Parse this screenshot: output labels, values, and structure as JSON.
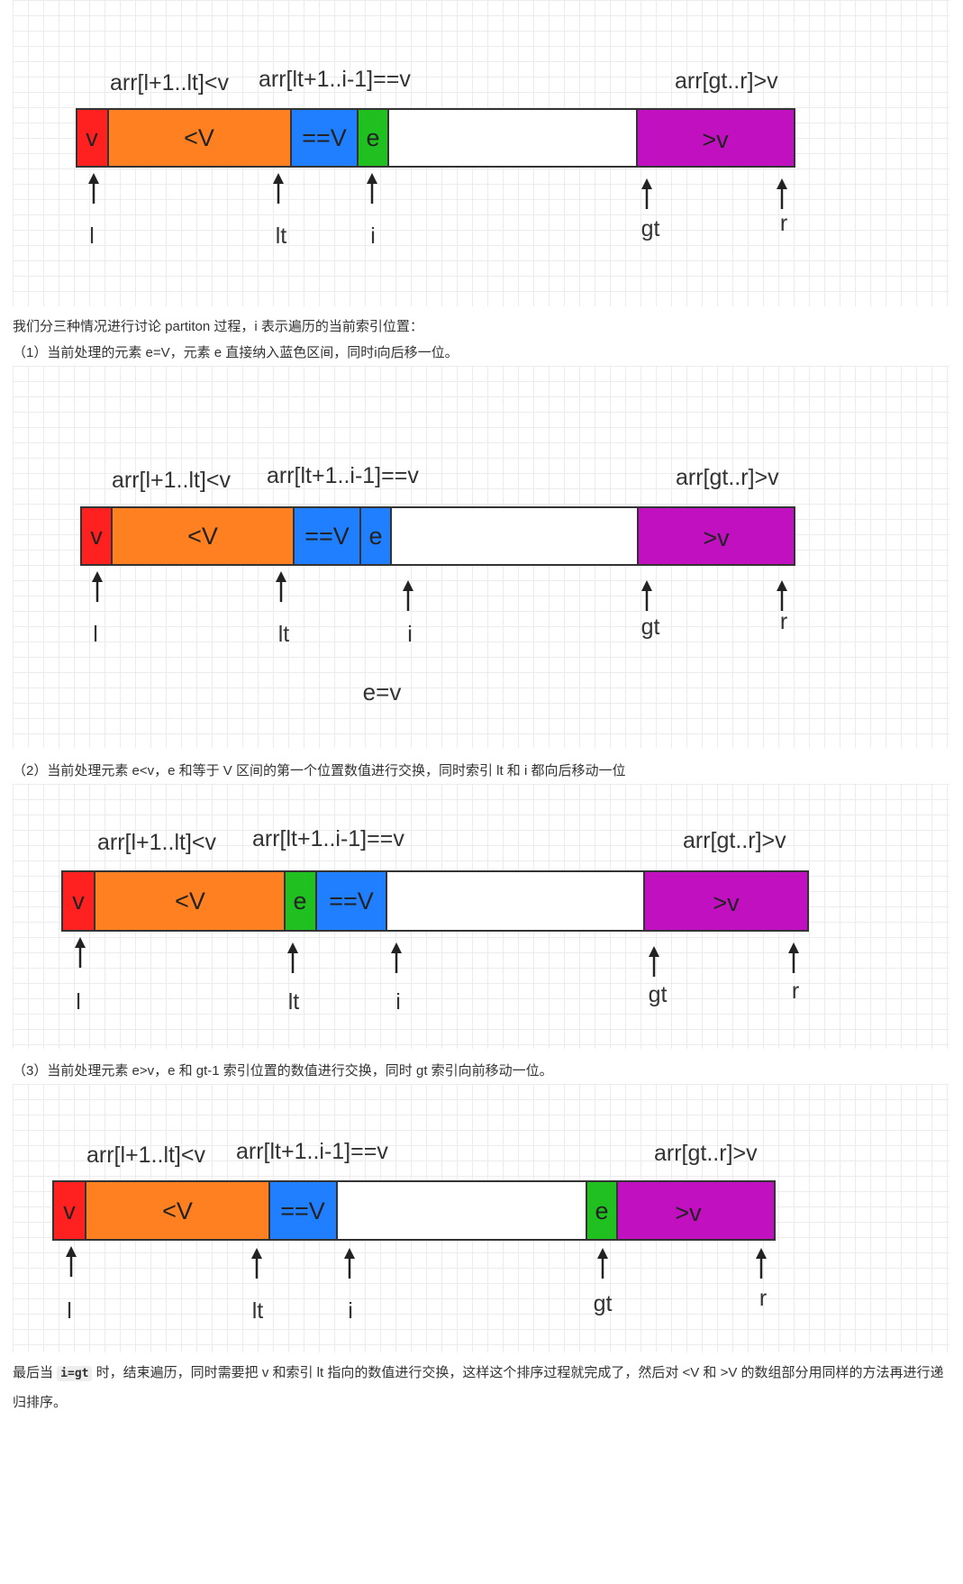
{
  "diagrams": [
    {
      "labels_top": {
        "left": "arr[l+1..lt]<v",
        "mid": "arr[lt+1..i-1]==v",
        "right": "arr[gt..r]>v"
      },
      "segments": [
        {
          "text": "v",
          "color": "#ff2020"
        },
        {
          "text": "<V",
          "color": "#ff8020"
        },
        {
          "text": "==V",
          "color": "#1f7fff"
        },
        {
          "text": "e",
          "color": "#20c020"
        },
        {
          "text": "",
          "color": "#ffffff"
        },
        {
          "text": ">v",
          "color": "#c010c0"
        }
      ],
      "pointers": [
        "l",
        "lt",
        "i",
        "gt",
        "r"
      ],
      "note": ""
    },
    {
      "labels_top": {
        "left": "arr[l+1..lt]<v",
        "mid": "arr[lt+1..i-1]==v",
        "right": "arr[gt..r]>v"
      },
      "segments": [
        {
          "text": "v",
          "color": "#ff2020"
        },
        {
          "text": "<V",
          "color": "#ff8020"
        },
        {
          "text": "==V",
          "color": "#1f7fff"
        },
        {
          "text": "e",
          "color": "#1f7fff"
        },
        {
          "text": "",
          "color": "#ffffff"
        },
        {
          "text": ">v",
          "color": "#c010c0"
        }
      ],
      "pointers": [
        "l",
        "lt",
        "i",
        "gt",
        "r"
      ],
      "note": "e=v"
    },
    {
      "labels_top": {
        "left": "arr[l+1..lt]<v",
        "mid": "arr[lt+1..i-1]==v",
        "right": "arr[gt..r]>v"
      },
      "segments": [
        {
          "text": "v",
          "color": "#ff2020"
        },
        {
          "text": "<V",
          "color": "#ff8020"
        },
        {
          "text": "e",
          "color": "#20c020"
        },
        {
          "text": "==V",
          "color": "#1f7fff"
        },
        {
          "text": "",
          "color": "#ffffff"
        },
        {
          "text": ">v",
          "color": "#c010c0"
        }
      ],
      "pointers": [
        "l",
        "lt",
        "i",
        "gt",
        "r"
      ],
      "note": ""
    },
    {
      "labels_top": {
        "left": "arr[l+1..lt]<v",
        "mid": "arr[lt+1..i-1]==v",
        "right": "arr[gt..r]>v"
      },
      "segments": [
        {
          "text": "v",
          "color": "#ff2020"
        },
        {
          "text": "<V",
          "color": "#ff8020"
        },
        {
          "text": "==V",
          "color": "#1f7fff"
        },
        {
          "text": "",
          "color": "#ffffff"
        },
        {
          "text": "e",
          "color": "#20c020"
        },
        {
          "text": ">v",
          "color": "#c010c0"
        }
      ],
      "pointers": [
        "l",
        "lt",
        "i",
        "gt",
        "r"
      ],
      "note": ""
    }
  ],
  "text": {
    "intro": "我们分三种情况进行讨论 partiton 过程，i 表示遍历的当前索引位置：",
    "case1": "（1）当前处理的元素 e=V，元素 e 直接纳入蓝色区间，同时i向后移一位。",
    "case2": "（2）当前处理元素 e<v，e 和等于 V 区间的第一个位置数值进行交换，同时索引 lt 和 i 都向后移动一位",
    "case3": "（3）当前处理元素 e>v，e 和 gt-1 索引位置的数值进行交换，同时 gt 索引向前移动一位。",
    "final_before": "最后当 ",
    "final_code": "i=gt",
    "final_after": " 时，结束遍历，同时需要把 v 和索引 lt 指向的数值进行交换，这样这个排序过程就完成了，然后对 <V 和 >V 的数组部分用同样的方法再进行递归排序。"
  }
}
